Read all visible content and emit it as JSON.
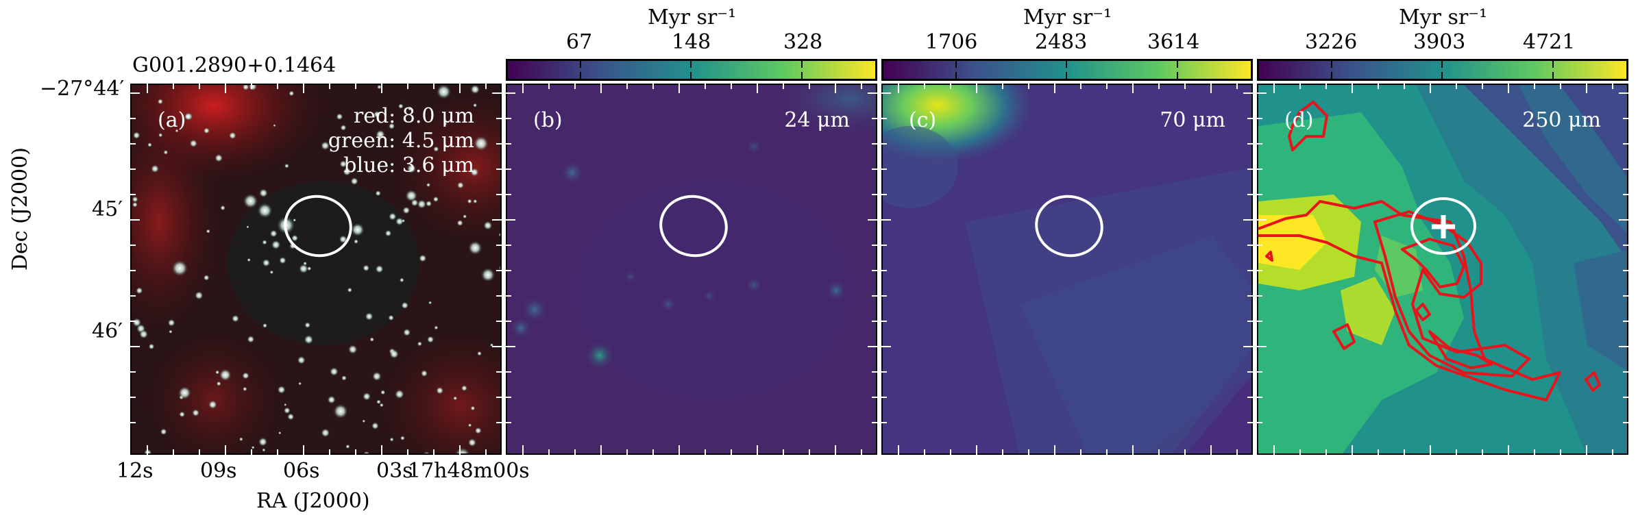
{
  "source_name": "G001.2890+0.1464",
  "y_ticks": [
    "−27°44′",
    "45′",
    "46′"
  ],
  "y_axis_label": "Dec (J2000)",
  "x_ticks": [
    "12s",
    "09s",
    "06s",
    "03s",
    "17h48m00s"
  ],
  "x_axis_label": "RA (J2000)",
  "panels": [
    {
      "id": "a",
      "label": "(a)",
      "legend": [
        "red: 8.0 μm",
        "green: 4.5 μm",
        "blue: 3.6 μm"
      ]
    },
    {
      "id": "b",
      "label": "(b)",
      "wavelength": "24 μm",
      "colorbar_unit": "Myr sr⁻¹",
      "colorbar_ticks": [
        "67",
        "148",
        "328"
      ]
    },
    {
      "id": "c",
      "label": "(c)",
      "wavelength": "70 μm",
      "colorbar_unit": "Myr sr⁻¹",
      "colorbar_ticks": [
        "1706",
        "2483",
        "3614"
      ]
    },
    {
      "id": "d",
      "label": "(d)",
      "wavelength": "250 μm",
      "colorbar_unit": "Myr sr⁻¹",
      "colorbar_ticks": [
        "3226",
        "3903",
        "4721"
      ]
    }
  ],
  "colors": {
    "viridis_low": "#440154",
    "viridis_mid": "#21918c",
    "viridis_high": "#fde725",
    "contour": "#e8141c",
    "ellipse": "#ffffff"
  }
}
